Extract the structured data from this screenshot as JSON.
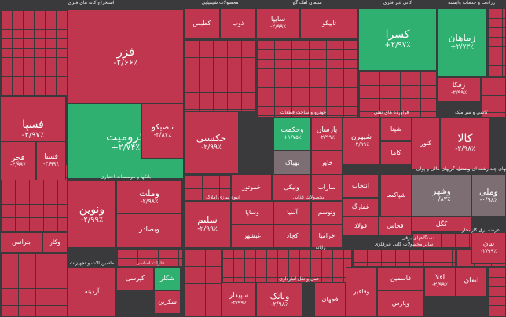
{
  "colors": {
    "negative": "#c0364f",
    "positive": "#2fb070",
    "neutral": "#7d6e74",
    "gap": "#3a3a3c"
  },
  "sector_labels": [
    "استخراج کانه های فلزی",
    "محصولات شیمیایی",
    "سیمان آهک گچ",
    "کانی غیر فلزی",
    "زراعت و خدمات وابسته",
    "بانکها و موسسات اعتباری",
    "فرآورده های نفتی",
    "انبوه سازی املاک",
    "محصولات غذایی",
    "واسطه گریهای مالی و پولی",
    "خودرو و ساخت قطعات",
    "سرمایه گذاریها",
    "شرکتهای چند رشته ای صنعتی",
    "رایانه",
    "فلزات اساسی",
    "کاشی و سرامیک",
    "ماشین آلات و تجهیزات",
    "سایر محصولات کانی غیرفلزی",
    "دستگاههای برقی",
    "حمل و نقل انبارداری",
    "عرضه برق گاز بخار",
    "مخابرات",
    "استخراج زغال سنگ"
  ],
  "tiles": [
    {
      "name": "فزر",
      "change": "-۲/۶۶٪",
      "color": "negative"
    },
    {
      "name": "فسپا",
      "change": "-۲/۹۷٪",
      "color": "negative"
    },
    {
      "name": "کرومیت",
      "change": "+۲/۷۴٪",
      "color": "positive"
    },
    {
      "name": "تاصیکو",
      "change": "-۲/۸۷٪",
      "color": "negative"
    },
    {
      "name": "فجر",
      "change": "-۲/۹۹٪",
      "color": "negative"
    },
    {
      "name": "فسبا",
      "change": "-۲/۹۹٪",
      "color": "negative"
    },
    {
      "name": "ونوین",
      "change": "-۲/۹۹٪",
      "color": "negative"
    },
    {
      "name": "وملت",
      "change": "-۲/۹۸٪",
      "color": "negative"
    },
    {
      "name": "وبصادر",
      "change": "",
      "color": "negative"
    },
    {
      "name": "حکشتی",
      "change": "-۲/۹۹٪",
      "color": "negative"
    },
    {
      "name": "وحکمت",
      "change": "+۱/۷۵٪",
      "color": "positive"
    },
    {
      "name": "پارسان",
      "change": "-۲/۹۹٪",
      "color": "negative"
    },
    {
      "name": "شپهرن",
      "change": "-۲/۹۹٪",
      "color": "negative"
    },
    {
      "name": "کسرا",
      "change": "+۲/۹۷٪",
      "color": "positive"
    },
    {
      "name": "زماهان",
      "change": "+۲/۷۳٪",
      "color": "positive"
    },
    {
      "name": "زفکا",
      "change": "-۲/۹۹٪",
      "color": "negative"
    },
    {
      "name": "کالا",
      "change": "-۲/۹۸٪",
      "color": "negative"
    },
    {
      "name": "سایپا",
      "change": "-۲/۹۹٪",
      "color": "negative"
    },
    {
      "name": "سلیم",
      "change": "-۲/۹۹٪",
      "color": "negative"
    },
    {
      "name": "وشهر",
      "change": "-۰/۸۳٪",
      "color": "neutral"
    },
    {
      "name": "وملی",
      "change": "-۰/۹۸٪",
      "color": "neutral"
    },
    {
      "name": "انتخاب",
      "change": "",
      "color": "negative"
    },
    {
      "name": "نیان",
      "change": "-۲/۹۹٪",
      "color": "negative"
    },
    {
      "name": "اتقان",
      "change": "",
      "color": "negative"
    },
    {
      "name": "وبانک",
      "change": "-۲/۹۸٪",
      "color": "negative"
    },
    {
      "name": "سپیدار",
      "change": "-۲/۹۹٪",
      "color": "negative"
    },
    {
      "name": "شکلر",
      "change": "",
      "color": "positive"
    },
    {
      "name": "شکربن",
      "change": "",
      "color": "negative"
    },
    {
      "name": "کپرسی",
      "change": "",
      "color": "negative"
    },
    {
      "name": "اقلا",
      "change": "-۲/۹۹٪",
      "color": "negative"
    },
    {
      "name": "وفاقیر",
      "change": "",
      "color": "negative"
    },
    {
      "name": "فجهان",
      "change": "",
      "color": "negative"
    },
    {
      "name": "فاسمین",
      "change": "",
      "color": "negative"
    },
    {
      "name": "وپارس",
      "change": "",
      "color": "negative"
    },
    {
      "name": "وکار",
      "change": "",
      "color": "negative"
    },
    {
      "name": "آردینه",
      "change": "",
      "color": "negative"
    },
    {
      "name": "بترانس",
      "change": "",
      "color": "negative"
    },
    {
      "name": "لابسا",
      "change": "",
      "color": "negative"
    },
    {
      "name": "بهپاک",
      "change": "",
      "color": "neutral"
    },
    {
      "name": "خاور",
      "change": "",
      "color": "negative"
    },
    {
      "name": "خموتور",
      "change": "",
      "color": "negative"
    },
    {
      "name": "ونیکی",
      "change": "",
      "color": "negative"
    },
    {
      "name": "ساراب",
      "change": "",
      "color": "negative"
    },
    {
      "name": "شپنا",
      "change": "",
      "color": "negative"
    },
    {
      "name": "کاما",
      "change": "",
      "color": "negative"
    },
    {
      "name": "کنور",
      "change": "",
      "color": "negative"
    },
    {
      "name": "شپاکسا",
      "change": "",
      "color": "negative"
    },
    {
      "name": "غمارگ",
      "change": "",
      "color": "negative"
    },
    {
      "name": "وساپا",
      "change": "",
      "color": "negative"
    },
    {
      "name": "آسیا",
      "change": "",
      "color": "negative"
    },
    {
      "name": "وتوسم",
      "change": "",
      "color": "negative"
    },
    {
      "name": "غبشهر",
      "change": "",
      "color": "negative"
    },
    {
      "name": "کچاد",
      "change": "",
      "color": "negative"
    },
    {
      "name": "خزامیا",
      "change": "",
      "color": "negative"
    },
    {
      "name": "فولاد",
      "change": "",
      "color": "negative"
    },
    {
      "name": "فخاس",
      "change": "",
      "color": "negative"
    },
    {
      "name": "کگل",
      "change": "",
      "color": "negative"
    },
    {
      "name": "تاپیکو",
      "change": "",
      "color": "negative"
    },
    {
      "name": "کطبس",
      "change": "",
      "color": "negative"
    },
    {
      "name": "ذوب",
      "change": "",
      "color": "negative"
    }
  ]
}
